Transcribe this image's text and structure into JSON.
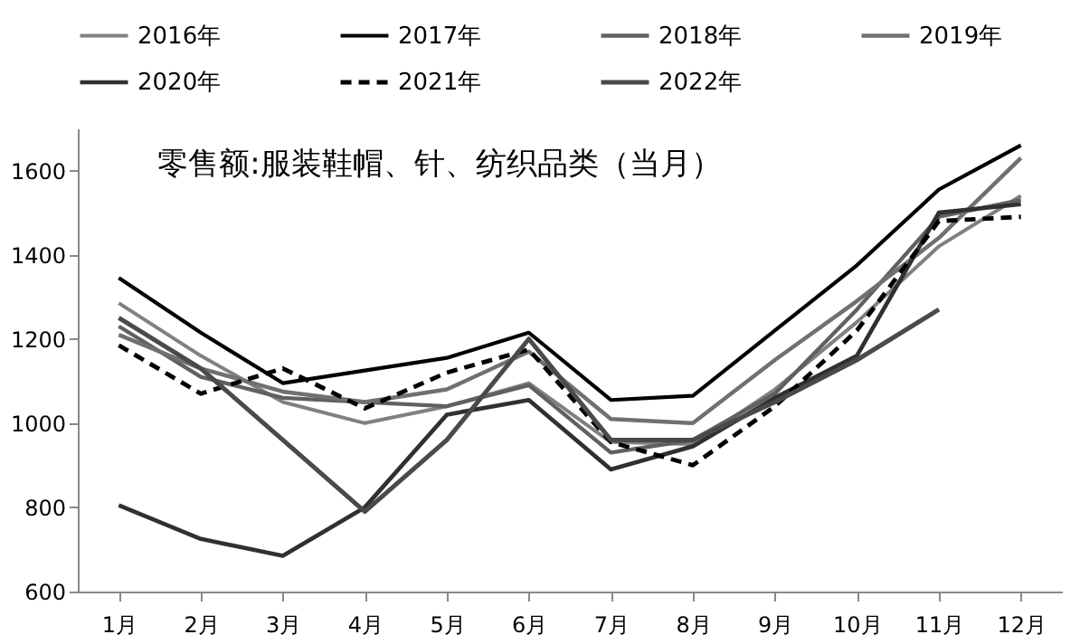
{
  "chart_data": {
    "type": "line",
    "title": "零售额:服装鞋帽、针、纺织品类（当月）",
    "categories": [
      "1月",
      "2月",
      "3月",
      "4月",
      "5月",
      "6月",
      "7月",
      "8月",
      "9月",
      "10月",
      "11月",
      "12月"
    ],
    "series": [
      {
        "name": "2016年",
        "color": "#808080",
        "line_style": "solid",
        "values": [
          1285,
          1160,
          1050,
          1000,
          1040,
          1095,
          955,
          950,
          1080,
          1240,
          1420,
          1540
        ]
      },
      {
        "name": "2017年",
        "color": "#000000",
        "line_style": "solid",
        "values": [
          1345,
          1215,
          1095,
          1125,
          1155,
          1215,
          1055,
          1065,
          1220,
          1375,
          1555,
          1660
        ]
      },
      {
        "name": "2018年",
        "color": "#606060",
        "line_style": "solid",
        "values": [
          1230,
          1110,
          1060,
          1050,
          1040,
          1090,
          930,
          960,
          1070,
          1270,
          1490,
          1530
        ]
      },
      {
        "name": "2019年",
        "color": "#707070",
        "line_style": "solid",
        "values": [
          1210,
          1130,
          1075,
          1050,
          1080,
          1170,
          1010,
          1000,
          1150,
          1290,
          1440,
          1630
        ]
      },
      {
        "name": "2020年",
        "color": "#303030",
        "line_style": "solid",
        "values": [
          805,
          725,
          685,
          800,
          1020,
          1055,
          890,
          945,
          1060,
          1160,
          1500,
          1520
        ]
      },
      {
        "name": "2021年",
        "color": "#000000",
        "line_style": "dashed",
        "values": [
          1185,
          1070,
          1130,
          1035,
          1120,
          1175,
          955,
          900,
          1040,
          1220,
          1480,
          1490
        ]
      },
      {
        "name": "2022年",
        "color": "#4a4a4a",
        "line_style": "solid",
        "values": [
          1250,
          1130,
          960,
          790,
          960,
          1200,
          960,
          960,
          1050,
          1150,
          1270,
          null
        ]
      }
    ],
    "ylim": [
      600,
      1700
    ],
    "yticks": [
      600,
      800,
      1000,
      1200,
      1400,
      1600
    ],
    "grid": false,
    "legend": "top",
    "marker": "none"
  }
}
